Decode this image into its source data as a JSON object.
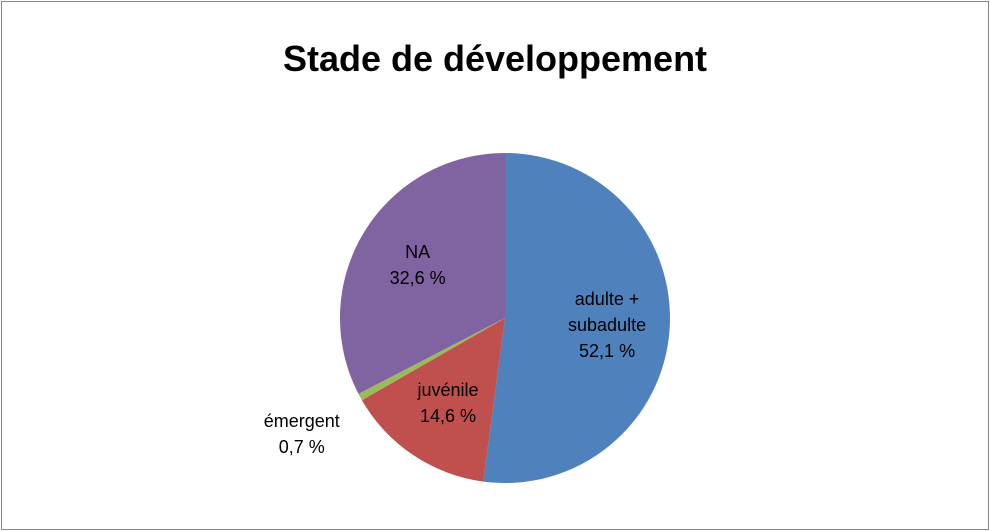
{
  "chart_data": {
    "type": "pie",
    "title": "Stade de développement",
    "categories": [
      "adulte + subadulte",
      "juvénile",
      "émergent",
      "NA"
    ],
    "values": [
      52.1,
      14.6,
      0.7,
      32.6
    ],
    "value_labels": [
      "52,1 %",
      "14,6 %",
      "0,7 %",
      "32,6 %"
    ],
    "colors": [
      "#4f81bd",
      "#c0504d",
      "#9bbb59",
      "#8064a2"
    ]
  }
}
